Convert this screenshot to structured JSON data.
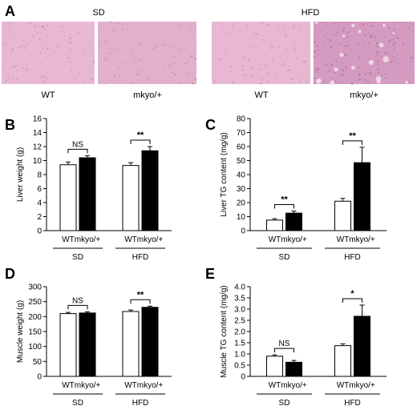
{
  "panel_a": {
    "letter": "A",
    "group_labels": [
      "SD",
      "HFD"
    ],
    "image_labels": [
      "WT",
      "mkyo/+",
      "WT",
      "mkyo/+"
    ],
    "tissue_colors": [
      "#e8b8d3",
      "#e2b0cc",
      "#e8b8d3",
      "#d49ac0"
    ]
  },
  "chart_data": [
    {
      "letter": "B",
      "type": "bar",
      "ylabel": "Liver weight (g)",
      "ylim": [
        0,
        16
      ],
      "yticks": [
        0,
        2,
        4,
        6,
        8,
        10,
        12,
        14,
        16
      ],
      "groups": [
        "SD",
        "HFD"
      ],
      "categories": [
        "WT",
        "mkyo/+"
      ],
      "values": [
        [
          9.4,
          10.4
        ],
        [
          9.3,
          11.4
        ]
      ],
      "errors": [
        [
          0.4,
          0.3
        ],
        [
          0.4,
          0.6
        ]
      ],
      "significance": [
        "NS",
        "**"
      ],
      "bar_colors": [
        "#ffffff",
        "#000000"
      ]
    },
    {
      "letter": "C",
      "type": "bar",
      "ylabel": "Liver TG content (mg/g)",
      "ylim": [
        0,
        80
      ],
      "yticks": [
        0,
        10,
        20,
        30,
        40,
        50,
        60,
        70,
        80
      ],
      "groups": [
        "SD",
        "HFD"
      ],
      "categories": [
        "WT",
        "mkyo/+"
      ],
      "values": [
        [
          7.5,
          12.5
        ],
        [
          21,
          48.5
        ]
      ],
      "errors": [
        [
          1,
          1.5
        ],
        [
          2,
          11
        ]
      ],
      "significance": [
        "**",
        "**"
      ],
      "bar_colors": [
        "#ffffff",
        "#000000"
      ]
    },
    {
      "letter": "D",
      "type": "bar",
      "ylabel": "Muscle weight (g)",
      "ylim": [
        0,
        300
      ],
      "yticks": [
        0,
        50,
        100,
        150,
        200,
        250,
        300
      ],
      "groups": [
        "SD",
        "HFD"
      ],
      "categories": [
        "WT",
        "mkyo/+"
      ],
      "values": [
        [
          210,
          212
        ],
        [
          217,
          231
        ]
      ],
      "errors": [
        [
          4,
          4
        ],
        [
          5,
          4
        ]
      ],
      "significance": [
        "NS",
        "**"
      ],
      "bar_colors": [
        "#ffffff",
        "#000000"
      ]
    },
    {
      "letter": "E",
      "type": "bar",
      "ylabel": "Muscle TG content (mg/g)",
      "ylim": [
        0,
        4.0
      ],
      "yticks": [
        "0",
        "0.5",
        "1.0",
        "1.5",
        "2.0",
        "2.5",
        "3.0",
        "3.5",
        "4.0"
      ],
      "groups": [
        "SD",
        "HFD"
      ],
      "categories": [
        "WT",
        "mkyo/+"
      ],
      "values": [
        [
          0.9,
          0.63
        ],
        [
          1.37,
          2.68
        ]
      ],
      "errors": [
        [
          0.06,
          0.08
        ],
        [
          0.08,
          0.5
        ]
      ],
      "significance": [
        "NS",
        "*"
      ],
      "bar_colors": [
        "#ffffff",
        "#000000"
      ]
    }
  ]
}
